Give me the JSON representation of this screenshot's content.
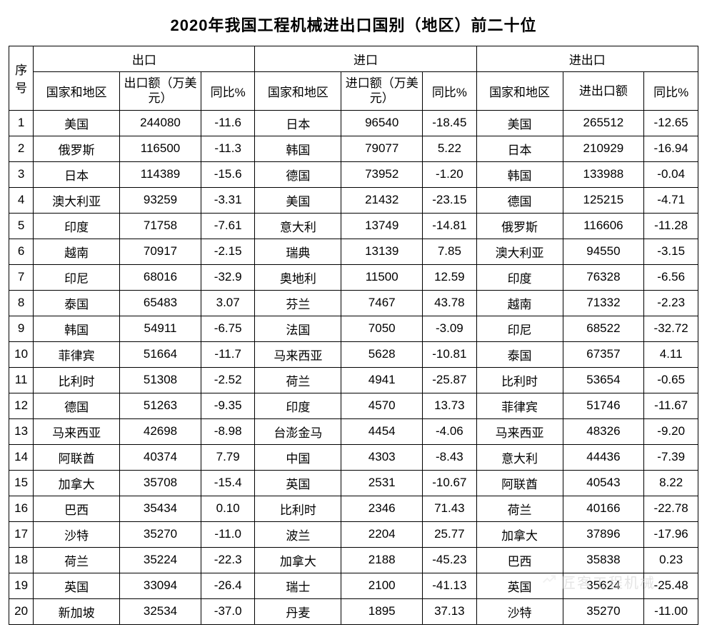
{
  "title": "2020年我国工程机械进出口国别（地区）前二十位",
  "table": {
    "type": "table",
    "border_color": "#000000",
    "background_color": "#ffffff",
    "text_color": "#000000",
    "font_size_pt": 13,
    "seq_header": "序号",
    "groups": [
      {
        "label": "出口",
        "col_region": "国家和地区",
        "col_amount": "出口额（万美元）",
        "col_yoy": "同比%"
      },
      {
        "label": "进口",
        "col_region": "国家和地区",
        "col_amount": "进口额（万美元）",
        "col_yoy": "同比%"
      },
      {
        "label": "进出口",
        "col_region": "国家和地区",
        "col_amount": "进出口额",
        "col_yoy": "同比%"
      }
    ],
    "rows": [
      {
        "seq": "1",
        "exp_region": "美国",
        "exp_amt": "244080",
        "exp_yoy": "-11.6",
        "imp_region": "日本",
        "imp_amt": "96540",
        "imp_yoy": "-18.45",
        "tot_region": "美国",
        "tot_amt": "265512",
        "tot_yoy": "-12.65"
      },
      {
        "seq": "2",
        "exp_region": "俄罗斯",
        "exp_amt": "116500",
        "exp_yoy": "-11.3",
        "imp_region": "韩国",
        "imp_amt": "79077",
        "imp_yoy": "5.22",
        "tot_region": "日本",
        "tot_amt": "210929",
        "tot_yoy": "-16.94"
      },
      {
        "seq": "3",
        "exp_region": "日本",
        "exp_amt": "114389",
        "exp_yoy": "-15.6",
        "imp_region": "德国",
        "imp_amt": "73952",
        "imp_yoy": "-1.20",
        "tot_region": "韩国",
        "tot_amt": "133988",
        "tot_yoy": "-0.04"
      },
      {
        "seq": "4",
        "exp_region": "澳大利亚",
        "exp_amt": "93259",
        "exp_yoy": "-3.31",
        "imp_region": "美国",
        "imp_amt": "21432",
        "imp_yoy": "-23.15",
        "tot_region": "德国",
        "tot_amt": "125215",
        "tot_yoy": "-4.71"
      },
      {
        "seq": "5",
        "exp_region": "印度",
        "exp_amt": "71758",
        "exp_yoy": "-7.61",
        "imp_region": "意大利",
        "imp_amt": "13749",
        "imp_yoy": "-14.81",
        "tot_region": "俄罗斯",
        "tot_amt": "116606",
        "tot_yoy": "-11.28"
      },
      {
        "seq": "6",
        "exp_region": "越南",
        "exp_amt": "70917",
        "exp_yoy": "-2.15",
        "imp_region": "瑞典",
        "imp_amt": "13139",
        "imp_yoy": "7.85",
        "tot_region": "澳大利亚",
        "tot_amt": "94550",
        "tot_yoy": "-3.15"
      },
      {
        "seq": "7",
        "exp_region": "印尼",
        "exp_amt": "68016",
        "exp_yoy": "-32.9",
        "imp_region": "奥地利",
        "imp_amt": "11500",
        "imp_yoy": "12.59",
        "tot_region": "印度",
        "tot_amt": "76328",
        "tot_yoy": "-6.56"
      },
      {
        "seq": "8",
        "exp_region": "泰国",
        "exp_amt": "65483",
        "exp_yoy": "3.07",
        "imp_region": "芬兰",
        "imp_amt": "7467",
        "imp_yoy": "43.78",
        "tot_region": "越南",
        "tot_amt": "71332",
        "tot_yoy": "-2.23"
      },
      {
        "seq": "9",
        "exp_region": "韩国",
        "exp_amt": "54911",
        "exp_yoy": "-6.75",
        "imp_region": "法国",
        "imp_amt": "7050",
        "imp_yoy": "-3.09",
        "tot_region": "印尼",
        "tot_amt": "68522",
        "tot_yoy": "-32.72"
      },
      {
        "seq": "10",
        "exp_region": "菲律宾",
        "exp_amt": "51664",
        "exp_yoy": "-11.7",
        "imp_region": "马来西亚",
        "imp_amt": "5628",
        "imp_yoy": "-10.81",
        "tot_region": "泰国",
        "tot_amt": "67357",
        "tot_yoy": "4.11"
      },
      {
        "seq": "11",
        "exp_region": "比利时",
        "exp_amt": "51308",
        "exp_yoy": "-2.52",
        "imp_region": "荷兰",
        "imp_amt": "4941",
        "imp_yoy": "-25.87",
        "tot_region": "比利时",
        "tot_amt": "53654",
        "tot_yoy": "-0.65"
      },
      {
        "seq": "12",
        "exp_region": "德国",
        "exp_amt": "51263",
        "exp_yoy": "-9.35",
        "imp_region": "印度",
        "imp_amt": "4570",
        "imp_yoy": "13.73",
        "tot_region": "菲律宾",
        "tot_amt": "51746",
        "tot_yoy": "-11.67"
      },
      {
        "seq": "13",
        "exp_region": "马来西亚",
        "exp_amt": "42698",
        "exp_yoy": "-8.98",
        "imp_region": "台澎金马",
        "imp_amt": "4454",
        "imp_yoy": "-4.06",
        "tot_region": "马来西亚",
        "tot_amt": "48326",
        "tot_yoy": "-9.20"
      },
      {
        "seq": "14",
        "exp_region": "阿联酋",
        "exp_amt": "40374",
        "exp_yoy": "7.79",
        "imp_region": "中国",
        "imp_amt": "4303",
        "imp_yoy": "-8.43",
        "tot_region": "意大利",
        "tot_amt": "44436",
        "tot_yoy": "-7.39"
      },
      {
        "seq": "15",
        "exp_region": "加拿大",
        "exp_amt": "35708",
        "exp_yoy": "-15.4",
        "imp_region": "英国",
        "imp_amt": "2531",
        "imp_yoy": "-10.67",
        "tot_region": "阿联酋",
        "tot_amt": "40543",
        "tot_yoy": "8.22"
      },
      {
        "seq": "16",
        "exp_region": "巴西",
        "exp_amt": "35434",
        "exp_yoy": "0.10",
        "imp_region": "比利时",
        "imp_amt": "2346",
        "imp_yoy": "71.43",
        "tot_region": "荷兰",
        "tot_amt": "40166",
        "tot_yoy": "-22.78"
      },
      {
        "seq": "17",
        "exp_region": "沙特",
        "exp_amt": "35270",
        "exp_yoy": "-11.0",
        "imp_region": "波兰",
        "imp_amt": "2204",
        "imp_yoy": "25.77",
        "tot_region": "加拿大",
        "tot_amt": "37896",
        "tot_yoy": "-17.96"
      },
      {
        "seq": "18",
        "exp_region": "荷兰",
        "exp_amt": "35224",
        "exp_yoy": "-22.3",
        "imp_region": "加拿大",
        "imp_amt": "2188",
        "imp_yoy": "-45.23",
        "tot_region": "巴西",
        "tot_amt": "35838",
        "tot_yoy": "0.23"
      },
      {
        "seq": "19",
        "exp_region": "英国",
        "exp_amt": "33094",
        "exp_yoy": "-26.4",
        "imp_region": "瑞士",
        "imp_amt": "2100",
        "imp_yoy": "-41.13",
        "tot_region": "英国",
        "tot_amt": "35624",
        "tot_yoy": "-25.48"
      },
      {
        "seq": "20",
        "exp_region": "新加坡",
        "exp_amt": "32534",
        "exp_yoy": "-37.0",
        "imp_region": "丹麦",
        "imp_amt": "1895",
        "imp_yoy": "37.13",
        "tot_region": "沙特",
        "tot_amt": "35270",
        "tot_yoy": "-11.00"
      }
    ]
  },
  "watermark": "匠客工程机械"
}
